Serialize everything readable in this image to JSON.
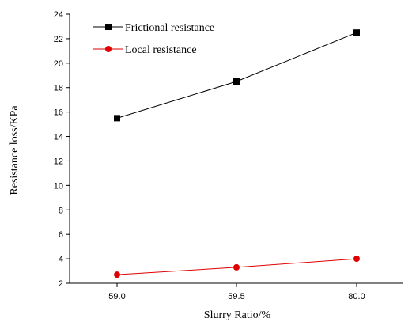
{
  "chart_data": {
    "type": "line",
    "categories": [
      "59.0",
      "59.5",
      "80.0"
    ],
    "xlabel": "Slurry Ratio/%",
    "ylabel": "Resistance loss/KPa",
    "ylim": [
      2,
      24
    ],
    "yticks": [
      2,
      4,
      6,
      8,
      10,
      12,
      14,
      16,
      18,
      20,
      22,
      24
    ],
    "grid": false,
    "legend_position": "top-left",
    "series": [
      {
        "name": "Frictional resistance",
        "color": "#000000",
        "marker": "square",
        "values": [
          15.5,
          18.5,
          22.5
        ]
      },
      {
        "name": "Local resistance",
        "color": "#e00000",
        "marker": "circle",
        "values": [
          2.7,
          3.3,
          4.0
        ]
      }
    ]
  }
}
